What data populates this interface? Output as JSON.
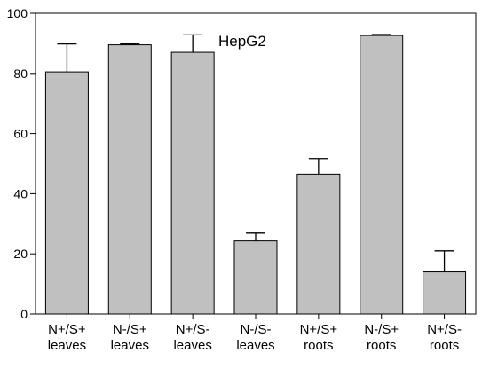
{
  "chart_data": {
    "type": "bar",
    "categories": [
      [
        "N+/S+",
        "leaves"
      ],
      [
        "N-/S+",
        "leaves"
      ],
      [
        "N+/S-",
        "leaves"
      ],
      [
        "N-/S-",
        "leaves"
      ],
      [
        "N+/S+",
        "roots"
      ],
      [
        "N-/S+",
        "roots"
      ],
      [
        "N+/S-",
        "roots"
      ]
    ],
    "values": [
      80.5,
      89.5,
      87.0,
      24.3,
      46.5,
      92.6,
      14.0
    ],
    "errors": [
      9.3,
      0.3,
      5.8,
      2.6,
      5.2,
      0.3,
      7.0
    ],
    "annotation": "HepG2",
    "title": "",
    "xlabel": "",
    "ylabel": "",
    "ylim": [
      0,
      100
    ],
    "yticks": [
      0,
      20,
      40,
      60,
      80,
      100
    ],
    "grid": false,
    "bar_color": "#c0c0c0",
    "edge_color": "#000000"
  }
}
